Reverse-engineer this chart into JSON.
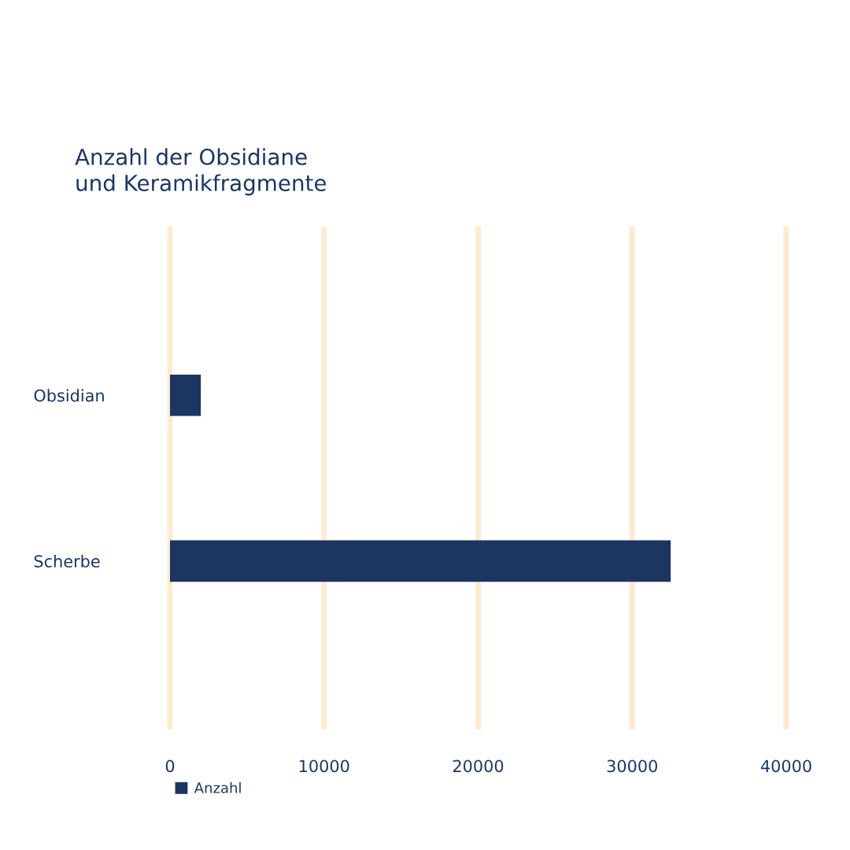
{
  "chart_data": {
    "type": "bar",
    "orientation": "horizontal",
    "title": "Anzahl der Obsidiane\nund Keramikfragmente",
    "categories": [
      "Obsidian",
      "Scherbe"
    ],
    "series": [
      {
        "name": "Anzahl",
        "color": "#1c3661",
        "values": [
          2000,
          32500
        ]
      }
    ],
    "xlim": [
      0,
      40000
    ],
    "xticks": [
      0,
      10000,
      20000,
      30000,
      40000
    ],
    "grid": "x",
    "legend": "bottom left"
  }
}
